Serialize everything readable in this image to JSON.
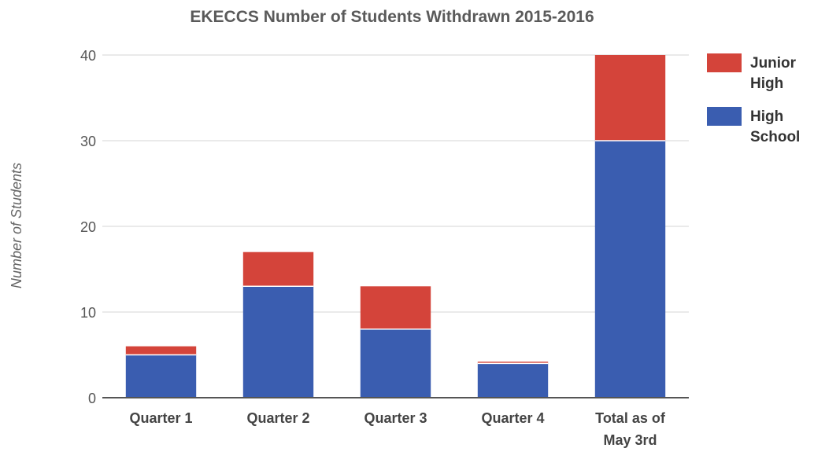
{
  "chart_data": {
    "type": "bar",
    "stacked": true,
    "title": "EKECCS Number of Students Withdrawn 2015-2016",
    "xlabel": "",
    "ylabel": "Number of Students",
    "ylim": [
      0,
      40
    ],
    "yticks": [
      "0",
      "10",
      "20",
      "30",
      "40"
    ],
    "categories": [
      [
        "Quarter 1"
      ],
      [
        "Quarter 2"
      ],
      [
        "Quarter 3"
      ],
      [
        "Quarter 4"
      ],
      [
        "Total as of",
        "May 3rd"
      ]
    ],
    "series": [
      {
        "name": "High School",
        "legend_lines": [
          "High",
          "School"
        ],
        "color": "#3a5db0",
        "values": [
          5,
          13,
          8,
          4,
          30
        ]
      },
      {
        "name": "Junior High",
        "legend_lines": [
          "Junior",
          "High"
        ],
        "color": "#d4443a",
        "values": [
          1,
          4,
          5,
          0.2,
          10
        ]
      }
    ],
    "legend_order": [
      1,
      0
    ],
    "grid": true,
    "legend_position": "right"
  }
}
